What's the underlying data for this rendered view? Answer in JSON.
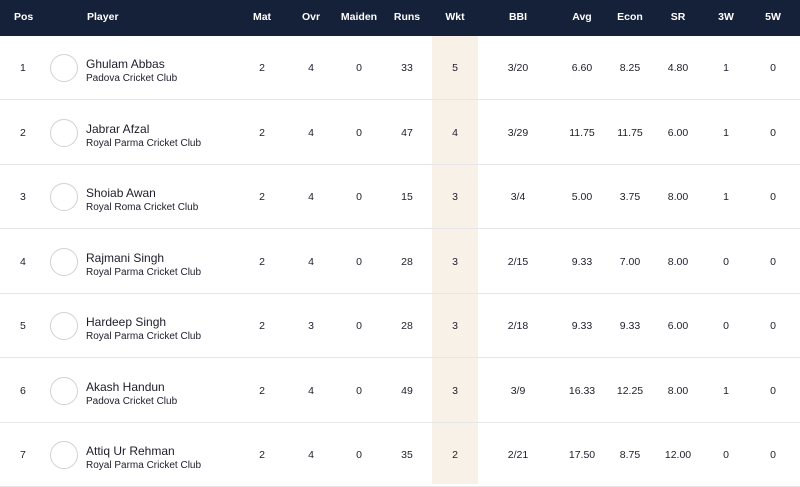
{
  "headers": {
    "pos": "Pos",
    "player": "Player",
    "mat": "Mat",
    "ovr": "Ovr",
    "maiden": "Maiden",
    "runs": "Runs",
    "wkt": "Wkt",
    "bbi": "BBI",
    "avg": "Avg",
    "econ": "Econ",
    "sr": "SR",
    "w3": "3W",
    "w5": "5W"
  },
  "rows": [
    {
      "pos": "1",
      "name": "Ghulam Abbas",
      "club": "Padova Cricket Club",
      "mat": "2",
      "ovr": "4",
      "maiden": "0",
      "runs": "33",
      "wkt": "5",
      "bbi": "3/20",
      "avg": "6.60",
      "econ": "8.25",
      "sr": "4.80",
      "w3": "1",
      "w5": "0"
    },
    {
      "pos": "2",
      "name": "Jabrar Afzal",
      "club": "Royal Parma Cricket Club",
      "mat": "2",
      "ovr": "4",
      "maiden": "0",
      "runs": "47",
      "wkt": "4",
      "bbi": "3/29",
      "avg": "11.75",
      "econ": "11.75",
      "sr": "6.00",
      "w3": "1",
      "w5": "0"
    },
    {
      "pos": "3",
      "name": "Shoiab Awan",
      "club": "Royal Roma Cricket Club",
      "mat": "2",
      "ovr": "4",
      "maiden": "0",
      "runs": "15",
      "wkt": "3",
      "bbi": "3/4",
      "avg": "5.00",
      "econ": "3.75",
      "sr": "8.00",
      "w3": "1",
      "w5": "0"
    },
    {
      "pos": "4",
      "name": "Rajmani Singh",
      "club": "Royal Parma Cricket Club",
      "mat": "2",
      "ovr": "4",
      "maiden": "0",
      "runs": "28",
      "wkt": "3",
      "bbi": "2/15",
      "avg": "9.33",
      "econ": "7.00",
      "sr": "8.00",
      "w3": "0",
      "w5": "0"
    },
    {
      "pos": "5",
      "name": "Hardeep Singh",
      "club": "Royal Parma Cricket Club",
      "mat": "2",
      "ovr": "3",
      "maiden": "0",
      "runs": "28",
      "wkt": "3",
      "bbi": "2/18",
      "avg": "9.33",
      "econ": "9.33",
      "sr": "6.00",
      "w3": "0",
      "w5": "0"
    },
    {
      "pos": "6",
      "name": "Akash Handun",
      "club": "Padova Cricket Club",
      "mat": "2",
      "ovr": "4",
      "maiden": "0",
      "runs": "49",
      "wkt": "3",
      "bbi": "3/9",
      "avg": "16.33",
      "econ": "12.25",
      "sr": "8.00",
      "w3": "1",
      "w5": "0"
    },
    {
      "pos": "7",
      "name": "Attiq Ur Rehman",
      "club": "Royal Parma Cricket Club",
      "mat": "2",
      "ovr": "4",
      "maiden": "0",
      "runs": "35",
      "wkt": "2",
      "bbi": "2/21",
      "avg": "17.50",
      "econ": "8.75",
      "sr": "12.00",
      "w3": "0",
      "w5": "0"
    }
  ]
}
